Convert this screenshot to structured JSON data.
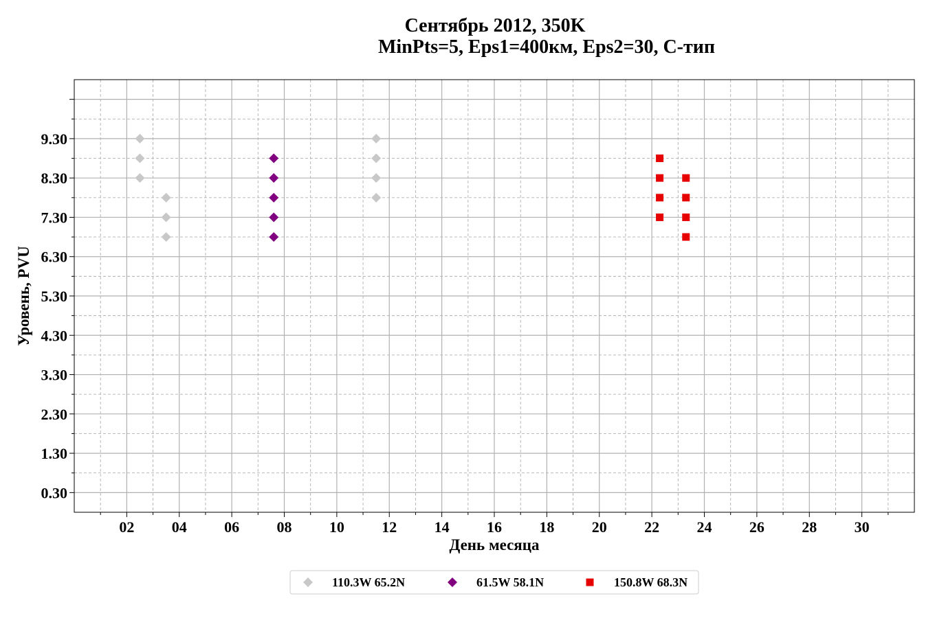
{
  "chart_data": {
    "type": "scatter",
    "title_lines": [
      "Сентябрь 2012, 350K",
      "MinPts=5, Eps1=400км, Eps2=30, C-тип"
    ],
    "xlabel": "День месяца",
    "ylabel": "Уровень, PVU",
    "x_ticks": [
      "02",
      "04",
      "06",
      "08",
      "10",
      "12",
      "14",
      "16",
      "18",
      "20",
      "22",
      "24",
      "26",
      "28",
      "30"
    ],
    "y_ticks": [
      "0.30",
      "1.30",
      "2.30",
      "3.30",
      "4.30",
      "5.30",
      "6.30",
      "7.30",
      "8.30",
      "9.30"
    ],
    "xlim": [
      0,
      32
    ],
    "ylim": [
      -0.2,
      10.8
    ],
    "grid": true,
    "legend_position": "bottom-center",
    "series": [
      {
        "name": "110.3W 65.2N",
        "marker": "diamond",
        "color": "#c8c8c8",
        "points": [
          [
            2.5,
            8.3
          ],
          [
            2.5,
            8.8
          ],
          [
            2.5,
            9.3
          ],
          [
            3.5,
            6.8
          ],
          [
            3.5,
            7.3
          ],
          [
            3.5,
            7.8
          ],
          [
            11.5,
            7.8
          ],
          [
            11.5,
            8.3
          ],
          [
            11.5,
            8.8
          ],
          [
            11.5,
            9.3
          ]
        ]
      },
      {
        "name": "61.5W 58.1N",
        "marker": "diamond",
        "color": "#800080",
        "points": [
          [
            7.6,
            6.8
          ],
          [
            7.6,
            7.3
          ],
          [
            7.6,
            7.8
          ],
          [
            7.6,
            8.3
          ],
          [
            7.6,
            8.8
          ]
        ]
      },
      {
        "name": "150.8W 68.3N",
        "marker": "square",
        "color": "#e60000",
        "points": [
          [
            22.3,
            7.3
          ],
          [
            22.3,
            7.8
          ],
          [
            22.3,
            8.3
          ],
          [
            22.3,
            8.8
          ],
          [
            23.3,
            6.8
          ],
          [
            23.3,
            7.3
          ],
          [
            23.3,
            7.8
          ],
          [
            23.3,
            8.3
          ]
        ]
      }
    ]
  }
}
